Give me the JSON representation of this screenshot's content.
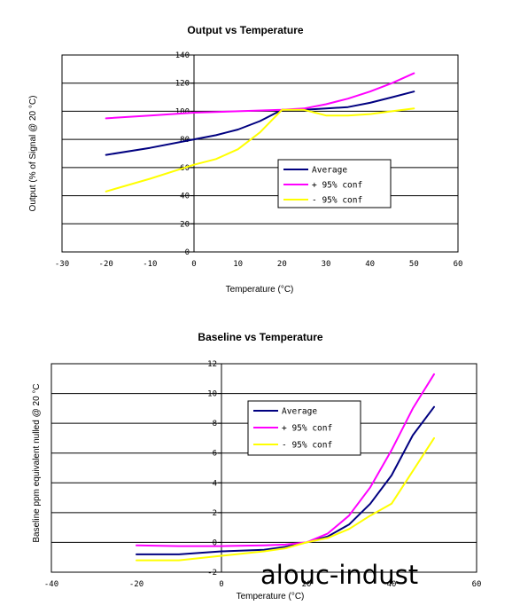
{
  "watermark": "alouc-indust",
  "chart_data": [
    {
      "type": "line",
      "title": "Output vs Temperature",
      "xlabel": "Temperature (°C)",
      "ylabel": "Output (% of Signal @ 20 °C)",
      "xlim": [
        -30,
        60
      ],
      "ylim": [
        0,
        140
      ],
      "xticks": [
        -30,
        -20,
        -10,
        0,
        10,
        20,
        30,
        40,
        50,
        60
      ],
      "yticks": [
        0,
        20,
        40,
        60,
        80,
        100,
        120,
        140
      ],
      "grid": "horizontal",
      "legend_position": "lower-right",
      "series": [
        {
          "name": "Average",
          "color": "#000080",
          "x": [
            -20,
            -10,
            0,
            5,
            10,
            15,
            20,
            25,
            30,
            35,
            40,
            45,
            50
          ],
          "y": [
            69,
            74,
            80,
            83,
            87,
            93,
            101,
            101,
            102,
            103,
            106,
            110,
            114
          ]
        },
        {
          "name": "+ 95% conf",
          "color": "#ff00ff",
          "x": [
            -20,
            -10,
            0,
            10,
            20,
            25,
            30,
            35,
            40,
            45,
            50
          ],
          "y": [
            95,
            97,
            99,
            100,
            101,
            102,
            105,
            109,
            114,
            120,
            127
          ]
        },
        {
          "name": "- 95% conf",
          "color": "#ffff00",
          "x": [
            -20,
            -10,
            0,
            5,
            10,
            15,
            20,
            25,
            30,
            35,
            40,
            45,
            50
          ],
          "y": [
            43,
            52,
            62,
            66,
            73,
            85,
            101,
            101,
            97,
            97,
            98,
            100,
            102
          ]
        }
      ]
    },
    {
      "type": "line",
      "title": "Baseline vs Temperature",
      "xlabel": "Temperature (°C)",
      "ylabel": "Baseline ppm equivalent nulled @ 20 °C",
      "xlim": [
        -40,
        60
      ],
      "ylim": [
        -2,
        12
      ],
      "xticks": [
        -40,
        -20,
        0,
        20,
        40,
        60
      ],
      "yticks": [
        -2,
        0,
        2,
        4,
        6,
        8,
        10,
        12
      ],
      "tick_labels_x": [
        "-40",
        "-20",
        "0",
        "20",
        "40",
        "60"
      ],
      "tick_labels_y": [
        "-2",
        "0",
        "2",
        "4",
        "6",
        "8",
        "10",
        "12"
      ],
      "grid": "horizontal",
      "legend_position": "center-right",
      "series": [
        {
          "name": "Average",
          "color": "#000080",
          "x": [
            -20,
            -10,
            0,
            10,
            15,
            20,
            25,
            30,
            35,
            40,
            45,
            50
          ],
          "y": [
            -0.8,
            -0.8,
            -0.6,
            -0.5,
            -0.3,
            0,
            0.4,
            1.2,
            2.6,
            4.5,
            7.2,
            9.1
          ]
        },
        {
          "name": "+ 95% conf",
          "color": "#ff00ff",
          "x": [
            -20,
            -10,
            0,
            10,
            15,
            20,
            25,
            30,
            35,
            40,
            45,
            50
          ],
          "y": [
            -0.2,
            -0.25,
            -0.25,
            -0.2,
            -0.15,
            0,
            0.6,
            1.8,
            3.7,
            6.2,
            9.0,
            11.3
          ]
        },
        {
          "name": "- 95% conf",
          "color": "#ffff00",
          "x": [
            -20,
            -10,
            0,
            10,
            15,
            20,
            25,
            30,
            35,
            40,
            45,
            50
          ],
          "y": [
            -1.2,
            -1.2,
            -0.9,
            -0.6,
            -0.4,
            0,
            0.3,
            0.9,
            1.8,
            2.6,
            4.8,
            7.0
          ]
        }
      ]
    }
  ]
}
